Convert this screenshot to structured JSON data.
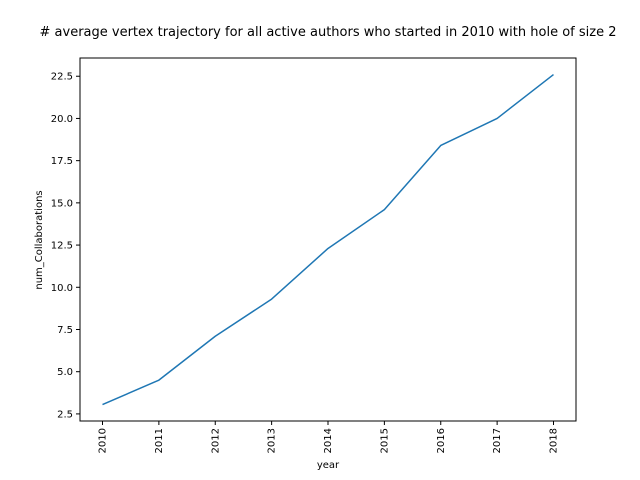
{
  "chart_data": {
    "type": "line",
    "title": "# average vertex trajectory for all active authors who started in 2010 with hole of size 2",
    "xlabel": "year",
    "ylabel": "num_Collaborations",
    "x": [
      "2010",
      "2011",
      "2012",
      "2013",
      "2014",
      "2015",
      "2016",
      "2017",
      "2018"
    ],
    "series": [
      {
        "values": [
          3.05,
          4.5,
          7.1,
          9.3,
          12.3,
          14.6,
          18.4,
          20.0,
          22.6
        ]
      }
    ],
    "yticks": [
      "2.5",
      "5.0",
      "7.5",
      "10.0",
      "12.5",
      "15.0",
      "17.5",
      "20.0",
      "22.5"
    ],
    "ylim": [
      2.08,
      23.58
    ],
    "grid": false,
    "line_color": "#1f77b4"
  }
}
